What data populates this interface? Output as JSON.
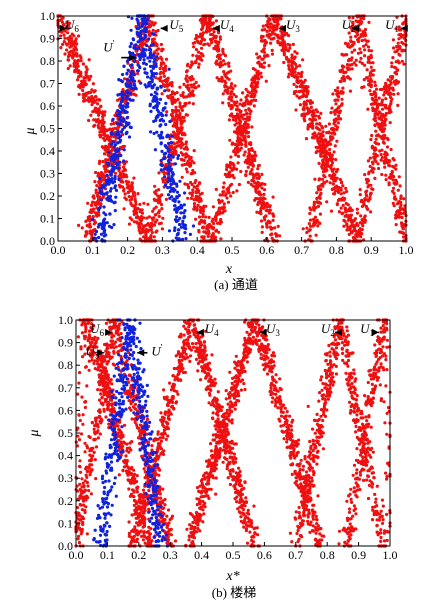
{
  "figure": {
    "panels": [
      {
        "caption": "(a) 通道",
        "xlabel": "x",
        "ylabel": "μ"
      },
      {
        "caption": "(b) 楼梯",
        "xlabel": "x*",
        "ylabel": "μ"
      }
    ]
  },
  "chart_data": [
    {
      "type": "scatter",
      "xlim": [
        0,
        1.0
      ],
      "ylim": [
        0,
        1.0
      ],
      "xticks": [
        "0.0",
        "0.1",
        "0.2",
        "0.3",
        "0.4",
        "0.5",
        "0.6",
        "0.7",
        "0.8",
        "0.9",
        "1.0"
      ],
      "yticks": [
        "0.0",
        "0.1",
        "0.2",
        "0.3",
        "0.4",
        "0.5",
        "0.6",
        "0.7",
        "0.8",
        "0.9",
        "1.0"
      ],
      "colors": {
        "fuzzy_sets": "#ee1111",
        "target": "#1122dd"
      },
      "series": [
        {
          "name": "U1",
          "color": "#ee1111",
          "peak": 1.0,
          "support": [
            0.86,
            1.0
          ],
          "label_x": 0.94,
          "label_y": 0.96,
          "arrow_tip": [
            0.985,
            0.945
          ]
        },
        {
          "name": "U2",
          "color": "#ee1111",
          "peak": 0.86,
          "support": [
            0.72,
            1.0
          ],
          "label_x": 0.815,
          "label_y": 0.96,
          "arrow_tip": [
            0.845,
            0.945
          ]
        },
        {
          "name": "U3",
          "color": "#ee1111",
          "peak": 0.62,
          "support": [
            0.44,
            0.86
          ],
          "label_x": 0.655,
          "label_y": 0.96,
          "arrow_tip": [
            0.635,
            0.945
          ]
        },
        {
          "name": "U4",
          "color": "#ee1111",
          "peak": 0.43,
          "support": [
            0.26,
            0.62
          ],
          "label_x": 0.465,
          "label_y": 0.96,
          "arrow_tip": [
            0.445,
            0.945
          ]
        },
        {
          "name": "U5",
          "color": "#ee1111",
          "peak": 0.26,
          "support": [
            0.08,
            0.43
          ],
          "label_x": 0.32,
          "label_y": 0.96,
          "arrow_tip": [
            0.295,
            0.945
          ]
        },
        {
          "name": "U6",
          "color": "#ee1111",
          "peak": 0.0,
          "support": [
            0.0,
            0.26
          ],
          "label_x": 0.02,
          "label_y": 0.96,
          "arrow_tip": [
            0.025,
            0.945
          ]
        },
        {
          "name": "U'",
          "color": "#1122dd",
          "peak": 0.24,
          "support": [
            0.12,
            0.36
          ],
          "label_x": 0.13,
          "label_y": 0.86,
          "arrow_tip": [
            0.225,
            0.815
          ],
          "prime": true
        }
      ]
    },
    {
      "type": "scatter",
      "xlim": [
        0,
        1.0
      ],
      "ylim": [
        0,
        1.0
      ],
      "xticks": [
        "0.0",
        "0.1",
        "0.2",
        "0.3",
        "0.4",
        "0.5",
        "0.6",
        "0.7",
        "0.8",
        "0.9",
        "1.0"
      ],
      "yticks": [
        "0.0",
        "0.1",
        "0.2",
        "0.3",
        "0.4",
        "0.5",
        "0.6",
        "0.7",
        "0.8",
        "0.9",
        "1.0"
      ],
      "colors": {
        "fuzzy_sets": "#ee1111",
        "target": "#1122dd"
      },
      "series": [
        {
          "name": "U1",
          "color": "#ee1111",
          "peak": 0.98,
          "support": [
            0.86,
            1.0
          ],
          "label_x": 0.905,
          "label_y": 0.96,
          "arrow_tip": [
            0.965,
            0.945
          ]
        },
        {
          "name": "U2",
          "color": "#ee1111",
          "peak": 0.84,
          "support": [
            0.7,
            0.98
          ],
          "label_x": 0.78,
          "label_y": 0.96,
          "arrow_tip": [
            0.825,
            0.945
          ]
        },
        {
          "name": "U3",
          "color": "#ee1111",
          "peak": 0.57,
          "support": [
            0.36,
            0.78
          ],
          "label_x": 0.605,
          "label_y": 0.96,
          "arrow_tip": [
            0.585,
            0.945
          ]
        },
        {
          "name": "U4",
          "color": "#ee1111",
          "peak": 0.37,
          "support": [
            0.18,
            0.57
          ],
          "label_x": 0.41,
          "label_y": 0.96,
          "arrow_tip": [
            0.385,
            0.945
          ]
        },
        {
          "name": "U5",
          "color": "#ee1111",
          "peak": 0.03,
          "support": [
            0.0,
            0.24
          ],
          "label_x": 0.03,
          "label_y": 0.86,
          "arrow_tip": [
            0.09,
            0.855
          ]
        },
        {
          "name": "U6",
          "color": "#ee1111",
          "peak": 0.12,
          "support": [
            0.0,
            0.3
          ],
          "label_x": 0.045,
          "label_y": 0.96,
          "arrow_tip": [
            0.115,
            0.945
          ]
        },
        {
          "name": "U'",
          "color": "#1122dd",
          "peak": 0.17,
          "support": [
            0.08,
            0.27
          ],
          "label_x": 0.24,
          "label_y": 0.86,
          "arrow_tip": [
            0.195,
            0.855
          ],
          "prime": true
        }
      ]
    }
  ]
}
